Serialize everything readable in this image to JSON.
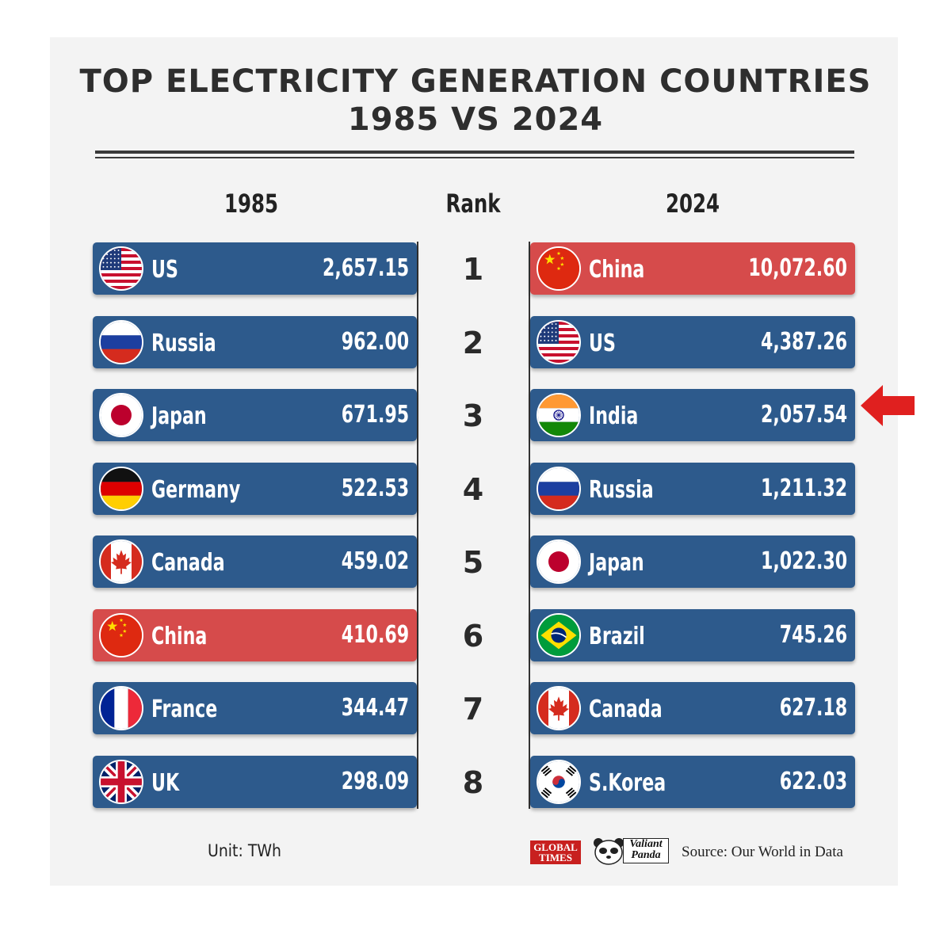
{
  "title": {
    "line1": "TOP ELECTRICITY GENERATION COUNTRIES",
    "line2": "1985 VS 2024"
  },
  "headers": {
    "left": "1985",
    "middle": "Rank",
    "right": "2024"
  },
  "footer": {
    "unit": "Unit: TWh",
    "logo_global_times_line1": "GLOBAL",
    "logo_global_times_line2": "TIMES",
    "logo_valiant_panda_line1": "Valiant",
    "logo_valiant_panda_line2": "Panda",
    "source": "Source: Our World in Data"
  },
  "colors": {
    "row": "#2d5a8c",
    "highlight": "#d64b4b",
    "arrow": "#e0201f"
  },
  "chart_data": {
    "type": "table",
    "unit": "TWh",
    "highlight_country": "China",
    "arrow_marks": {
      "year": "2024",
      "country": "India"
    },
    "ranks": [
      "1",
      "2",
      "3",
      "4",
      "5",
      "6",
      "7",
      "8"
    ],
    "y1985": [
      {
        "country": "US",
        "flag": "us",
        "value": "2,657.15"
      },
      {
        "country": "Russia",
        "flag": "russia",
        "value": "962.00"
      },
      {
        "country": "Japan",
        "flag": "japan",
        "value": "671.95"
      },
      {
        "country": "Germany",
        "flag": "germany",
        "value": "522.53"
      },
      {
        "country": "Canada",
        "flag": "canada",
        "value": "459.02"
      },
      {
        "country": "China",
        "flag": "china",
        "value": "410.69"
      },
      {
        "country": "France",
        "flag": "france",
        "value": "344.47"
      },
      {
        "country": "UK",
        "flag": "uk",
        "value": "298.09"
      }
    ],
    "y2024": [
      {
        "country": "China",
        "flag": "china",
        "value": "10,072.60"
      },
      {
        "country": "US",
        "flag": "us",
        "value": "4,387.26"
      },
      {
        "country": "India",
        "flag": "india",
        "value": "2,057.54"
      },
      {
        "country": "Russia",
        "flag": "russia",
        "value": "1,211.32"
      },
      {
        "country": "Japan",
        "flag": "japan",
        "value": "1,022.30"
      },
      {
        "country": "Brazil",
        "flag": "brazil",
        "value": "745.26"
      },
      {
        "country": "Canada",
        "flag": "canada",
        "value": "627.18"
      },
      {
        "country": "S.Korea",
        "flag": "skorea",
        "value": "622.03"
      }
    ]
  }
}
